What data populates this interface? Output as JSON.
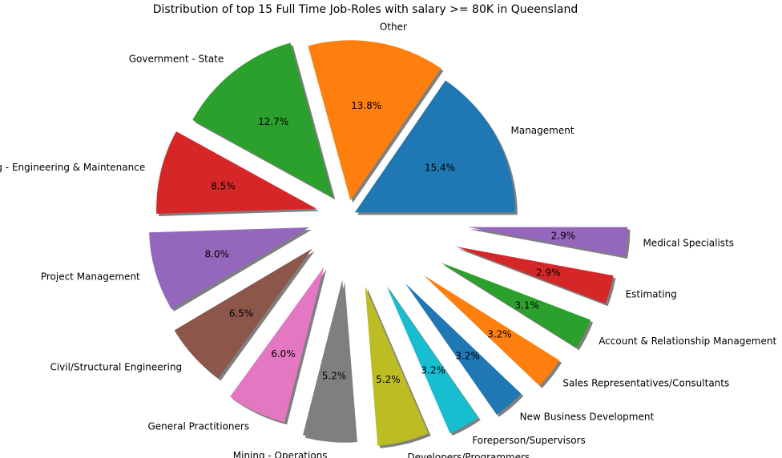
{
  "chart_data": {
    "type": "pie",
    "title": "Distribution of top 15 Full Time Job-Roles with salary >= 80K in Queensland",
    "shadow": true,
    "start_angle_deg": 0,
    "direction": "counterclockwise",
    "slices": [
      {
        "label": "Management",
        "value": 15.4,
        "pct": "15.4%",
        "color": "#1f77b4"
      },
      {
        "label": "Other",
        "value": 13.8,
        "pct": "13.8%",
        "color": "#ff7f0e"
      },
      {
        "label": "Government - State",
        "value": 12.7,
        "pct": "12.7%",
        "color": "#2ca02c"
      },
      {
        "label": "Mining - Engineering & Maintenance",
        "value": 8.5,
        "pct": "8.5%",
        "color": "#d62728"
      },
      {
        "label": "Project Management",
        "value": 8.0,
        "pct": "8.0%",
        "color": "#9467bd"
      },
      {
        "label": "Civil/Structural Engineering",
        "value": 6.5,
        "pct": "6.5%",
        "color": "#8c564b"
      },
      {
        "label": "General Practitioners",
        "value": 6.0,
        "pct": "6.0%",
        "color": "#e377c2"
      },
      {
        "label": "Mining - Operations",
        "value": 5.2,
        "pct": "5.2%",
        "color": "#7f7f7f"
      },
      {
        "label": "Developers/Programmers",
        "value": 5.2,
        "pct": "5.2%",
        "color": "#bcbd22"
      },
      {
        "label": "Foreperson/Supervisors",
        "value": 3.2,
        "pct": "3.2%",
        "color": "#17becf"
      },
      {
        "label": "New Business Development",
        "value": 3.2,
        "pct": "3.2%",
        "color": "#1f77b4"
      },
      {
        "label": "Sales Representatives/Consultants",
        "value": 3.2,
        "pct": "3.2%",
        "color": "#ff7f0e"
      },
      {
        "label": "Account & Relationship Management",
        "value": 3.1,
        "pct": "3.1%",
        "color": "#2ca02c"
      },
      {
        "label": "Estimating",
        "value": 2.9,
        "pct": "2.9%",
        "color": "#d62728"
      },
      {
        "label": "Medical Specialists",
        "value": 2.9,
        "pct": "2.9%",
        "color": "#9467bd"
      }
    ]
  }
}
